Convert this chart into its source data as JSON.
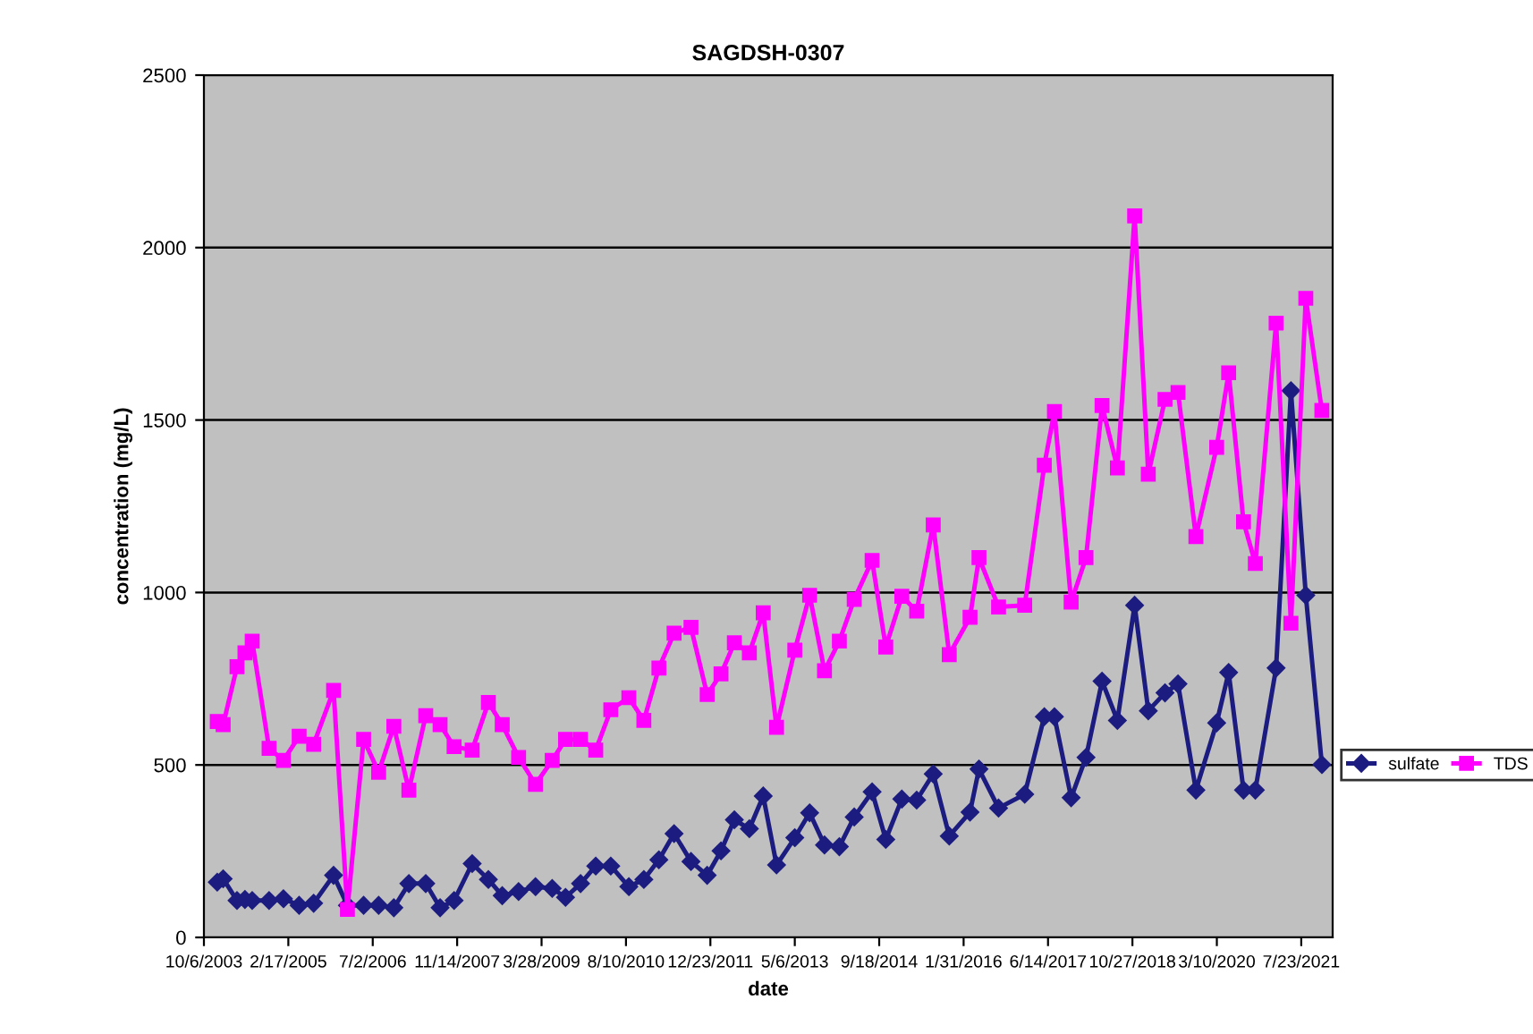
{
  "chart_data": {
    "type": "line",
    "title": "SAGDSH-0307",
    "xlabel": "date",
    "ylabel": "concentration (mg/L)",
    "x": [
      "2003-12-24",
      "2004-01-28",
      "2004-04-19",
      "2004-06-05",
      "2004-07-18",
      "2004-10-26",
      "2005-01-19",
      "2005-04-22",
      "2005-07-17",
      "2005-11-12",
      "2006-02-02",
      "2006-05-09",
      "2006-08-06",
      "2006-11-04",
      "2007-02-01",
      "2007-05-12",
      "2007-08-05",
      "2007-10-27",
      "2008-02-11",
      "2008-05-17",
      "2008-08-07",
      "2008-11-12",
      "2009-02-20",
      "2009-05-30",
      "2009-08-17",
      "2009-11-14",
      "2010-02-12",
      "2010-05-12",
      "2010-08-27",
      "2010-11-24",
      "2011-02-21",
      "2011-05-22",
      "2011-08-30",
      "2011-12-04",
      "2012-02-24",
      "2012-05-13",
      "2012-08-10",
      "2012-10-31",
      "2013-01-18",
      "2013-05-06",
      "2013-08-02",
      "2013-10-29",
      "2014-01-25",
      "2014-04-23",
      "2014-08-07",
      "2014-10-27",
      "2015-01-30",
      "2015-04-28",
      "2015-08-04",
      "2015-11-07",
      "2016-03-09",
      "2016-05-01",
      "2016-08-25",
      "2017-01-27",
      "2017-05-23",
      "2017-07-22",
      "2017-10-29",
      "2018-01-25",
      "2018-04-30",
      "2018-07-30",
      "2018-11-09",
      "2019-01-29",
      "2019-05-08",
      "2019-07-24",
      "2019-11-07",
      "2020-03-09",
      "2020-05-19",
      "2020-08-15",
      "2020-10-24",
      "2021-02-24",
      "2021-05-23",
      "2021-08-19",
      "2021-11-22"
    ],
    "series": [
      {
        "name": "sulfate",
        "color": "#1c1c80",
        "marker": "diamond",
        "values": [
          160,
          170,
          107,
          110,
          107,
          107,
          112,
          93,
          99,
          180,
          93,
          93,
          93,
          86,
          156,
          156,
          86,
          107,
          214,
          168,
          121,
          133,
          147,
          142,
          116,
          156,
          207,
          207,
          147,
          168,
          225,
          301,
          220,
          180,
          251,
          341,
          315,
          410,
          210,
          289,
          361,
          268,
          263,
          349,
          422,
          284,
          401,
          398,
          474,
          294,
          363,
          488,
          375,
          415,
          640,
          640,
          405,
          522,
          743,
          629,
          963,
          657,
          709,
          735,
          427,
          622,
          768,
          427,
          427,
          781,
          1585,
          992,
          501
        ]
      },
      {
        "name": "TDS",
        "color": "#ff00ff",
        "marker": "square",
        "values": [
          626,
          617,
          785,
          825,
          859,
          548,
          513,
          583,
          560,
          716,
          81,
          574,
          479,
          612,
          427,
          643,
          617,
          553,
          543,
          681,
          617,
          522,
          444,
          513,
          574,
          574,
          543,
          660,
          695,
          629,
          781,
          882,
          899,
          704,
          764,
          854,
          825,
          941,
          609,
          833,
          992,
          773,
          859,
          980,
          1093,
          842,
          989,
          946,
          1196,
          820,
          928,
          1101,
          958,
          963,
          1369,
          1525,
          972,
          1101,
          1542,
          1361,
          2092,
          1343,
          1560,
          1580,
          1162,
          1421,
          1637,
          1205,
          1084,
          1781,
          911,
          1853,
          1528
        ]
      }
    ],
    "xlim": [
      "2003-10-06",
      "2022-01-25"
    ],
    "xticks": [
      {
        "value": "2003-10-06",
        "label": "10/6/2003"
      },
      {
        "value": "2005-02-17",
        "label": "2/17/2005"
      },
      {
        "value": "2006-07-02",
        "label": "7/2/2006"
      },
      {
        "value": "2007-11-14",
        "label": "11/14/2007"
      },
      {
        "value": "2009-03-28",
        "label": "3/28/2009"
      },
      {
        "value": "2010-08-10",
        "label": "8/10/2010"
      },
      {
        "value": "2011-12-23",
        "label": "12/23/2011"
      },
      {
        "value": "2013-05-06",
        "label": "5/6/2013"
      },
      {
        "value": "2014-09-18",
        "label": "9/18/2014"
      },
      {
        "value": "2016-01-31",
        "label": "1/31/2016"
      },
      {
        "value": "2017-06-14",
        "label": "6/14/2017"
      },
      {
        "value": "2018-10-27",
        "label": "10/27/2018"
      },
      {
        "value": "2020-03-10",
        "label": "3/10/2020"
      },
      {
        "value": "2021-07-23",
        "label": "7/23/2021"
      }
    ],
    "ylim": [
      0,
      2500
    ],
    "yticks": [
      0,
      500,
      1000,
      1500,
      2000,
      2500
    ],
    "grid": "y",
    "legend": "right",
    "line_style": "solid"
  }
}
